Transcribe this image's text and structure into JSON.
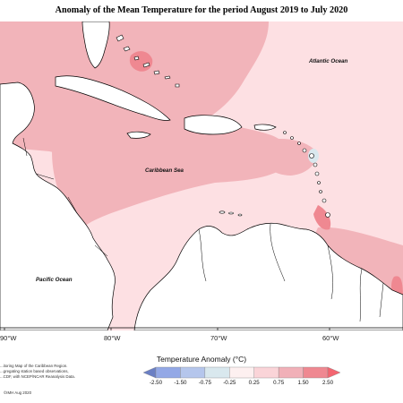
{
  "title": "Anomaly of the Mean Temperature for the period August 2019 to July 2020",
  "places": {
    "atlantic": "Atlantic Ocean",
    "caribbean": "Caribbean Sea",
    "pacific": "Pacific Ocean"
  },
  "longitudes": [
    "90°W",
    "80°W",
    "70°W",
    "60°W"
  ],
  "legend": {
    "title": "Temperature Anomaly (°C)",
    "ticks": [
      "-2.50",
      "-1.50",
      "-0.75",
      "-0.25",
      "0.25",
      "0.75",
      "1.50",
      "2.50"
    ],
    "colors": [
      "#6a7fc4",
      "#93a8e6",
      "#b5c6ec",
      "#d9e8ee",
      "#fdf0f0",
      "#fad4d8",
      "#f1b0b8",
      "#ef8891",
      "#f36570"
    ]
  },
  "credits": [
    "...itoring Map of the Caribbean Region.",
    "...gregating station based observations,",
    "...CDF, with NCEP/NCAR Reanalysis Data.",
    "©IMH Aug 2020"
  ],
  "colors": {
    "land": "#ffffff",
    "sea_pale": "#fde0e3",
    "anomaly_mid": "#f2b4ba",
    "anomaly_high": "#ef8891",
    "anomaly_cool": "#d9e8ee"
  }
}
